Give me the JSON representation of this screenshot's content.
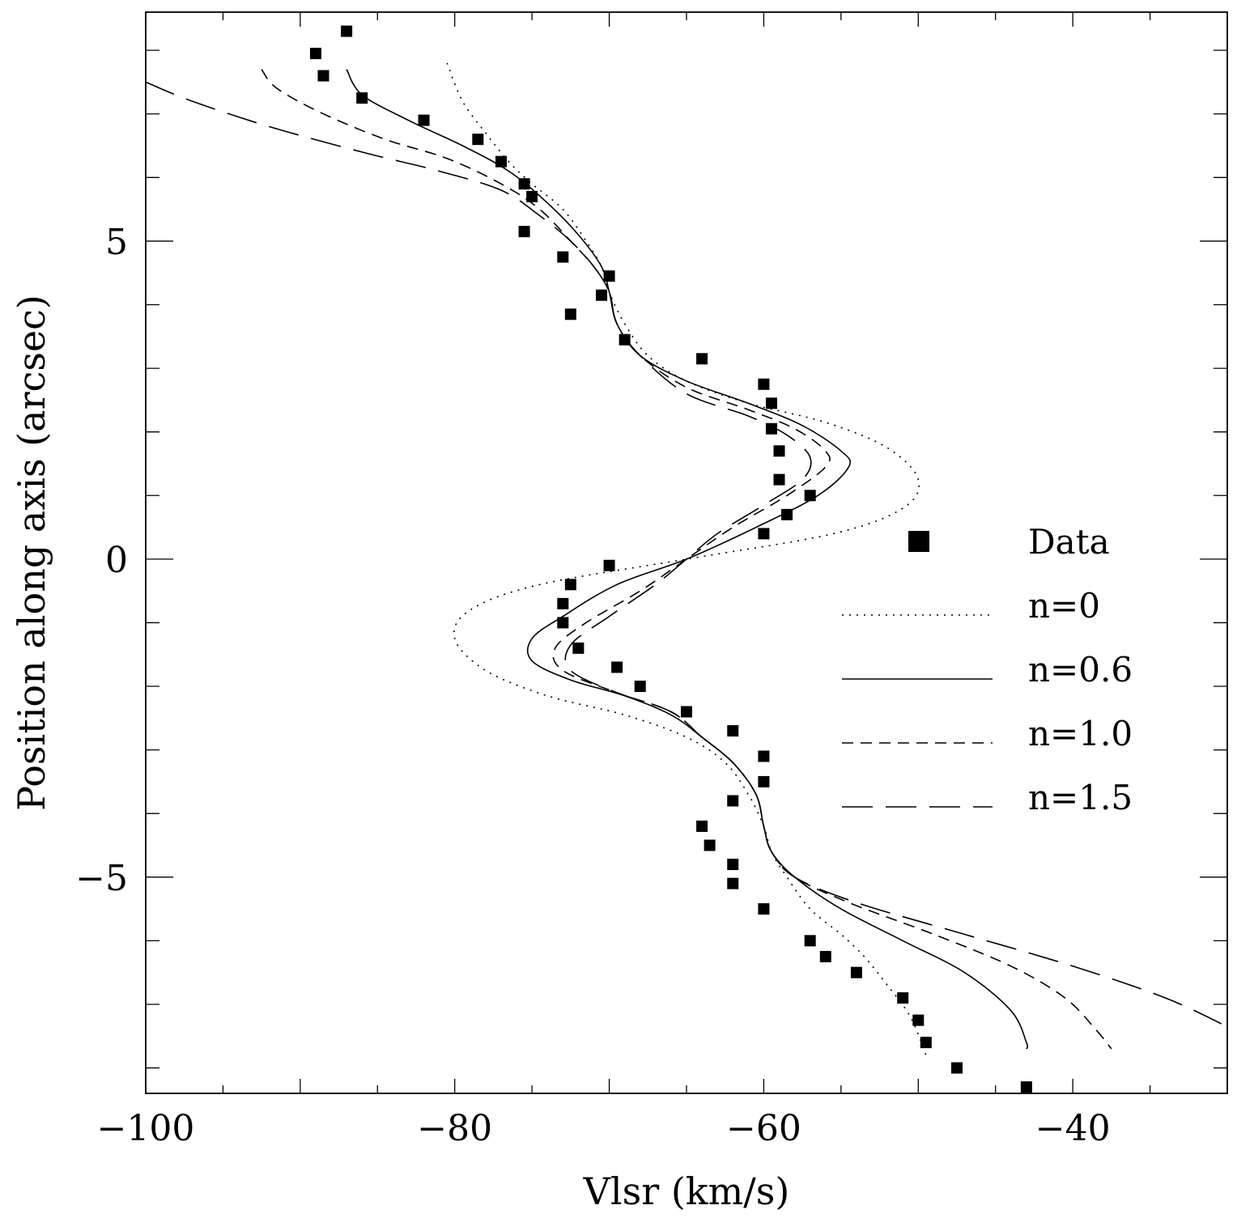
{
  "chart_data": {
    "type": "scatter",
    "title": "",
    "xlabel": "Vlsr (km/s)",
    "ylabel": "Position along axis (arcsec)",
    "xlim": [
      -100,
      -30
    ],
    "ylim": [
      -8.4,
      8.6
    ],
    "x_ticks": [
      -100,
      -80,
      -60,
      -40
    ],
    "x_tick_labels": [
      "−100",
      "−80",
      "−60",
      "−40"
    ],
    "y_ticks": [
      -5,
      0,
      5
    ],
    "y_tick_labels": [
      "−5",
      "0",
      "5"
    ],
    "legend_position": "right",
    "legend": [
      {
        "label": "Data",
        "style": "square"
      },
      {
        "label": "n=0",
        "style": "dotted"
      },
      {
        "label": "n=0.6",
        "style": "solid"
      },
      {
        "label": "n=1.0",
        "style": "short-dash"
      },
      {
        "label": "n=1.5",
        "style": "long-dash"
      }
    ],
    "data_points": [
      [
        -87.0,
        8.3
      ],
      [
        -89.0,
        7.95
      ],
      [
        -88.5,
        7.6
      ],
      [
        -86.0,
        7.25
      ],
      [
        -82.0,
        6.9
      ],
      [
        -78.5,
        6.6
      ],
      [
        -77.0,
        6.25
      ],
      [
        -75.5,
        5.9
      ],
      [
        -75.0,
        5.7
      ],
      [
        -75.5,
        5.15
      ],
      [
        -73.0,
        4.75
      ],
      [
        -70.0,
        4.45
      ],
      [
        -70.5,
        4.15
      ],
      [
        -72.5,
        3.85
      ],
      [
        -69.0,
        3.45
      ],
      [
        -64.0,
        3.15
      ],
      [
        -60.0,
        2.75
      ],
      [
        -59.5,
        2.45
      ],
      [
        -59.5,
        2.05
      ],
      [
        -59.0,
        1.7
      ],
      [
        -59.0,
        1.25
      ],
      [
        -57.0,
        1.0
      ],
      [
        -58.5,
        0.7
      ],
      [
        -60.0,
        0.4
      ],
      [
        -70.0,
        -0.1
      ],
      [
        -72.5,
        -0.4
      ],
      [
        -73.0,
        -0.7
      ],
      [
        -73.0,
        -1.0
      ],
      [
        -72.0,
        -1.4
      ],
      [
        -69.5,
        -1.7
      ],
      [
        -68.0,
        -2.0
      ],
      [
        -65.0,
        -2.4
      ],
      [
        -62.0,
        -2.7
      ],
      [
        -60.0,
        -3.1
      ],
      [
        -60.0,
        -3.5
      ],
      [
        -62.0,
        -3.8
      ],
      [
        -64.0,
        -4.2
      ],
      [
        -63.5,
        -4.5
      ],
      [
        -62.0,
        -4.8
      ],
      [
        -62.0,
        -5.1
      ],
      [
        -60.0,
        -5.5
      ],
      [
        -57.0,
        -6.0
      ],
      [
        -56.0,
        -6.25
      ],
      [
        -54.0,
        -6.5
      ],
      [
        -51.0,
        -6.9
      ],
      [
        -50.0,
        -7.25
      ],
      [
        -49.5,
        -7.6
      ],
      [
        -47.5,
        -8.0
      ],
      [
        -43.0,
        -8.3
      ]
    ],
    "series": [
      {
        "name": "n=0",
        "style": "dotted",
        "points": [
          [
            -80.5,
            7.8
          ],
          [
            -79.5,
            7.2
          ],
          [
            -78.0,
            6.7
          ],
          [
            -76.5,
            6.25
          ],
          [
            -75.0,
            5.9
          ],
          [
            -73.0,
            5.5
          ],
          [
            -71.5,
            5.0
          ],
          [
            -70.5,
            4.6
          ],
          [
            -70.0,
            4.2
          ],
          [
            -69.0,
            3.7
          ],
          [
            -67.5,
            3.2
          ],
          [
            -65.0,
            2.8
          ],
          [
            -61.0,
            2.45
          ],
          [
            -56.0,
            2.15
          ],
          [
            -52.0,
            1.75
          ],
          [
            -50.0,
            1.25
          ],
          [
            -51.0,
            0.8
          ],
          [
            -55.5,
            0.4
          ],
          [
            -65.0,
            0.0
          ],
          [
            -74.5,
            -0.4
          ],
          [
            -79.0,
            -0.8
          ],
          [
            -80.0,
            -1.25
          ],
          [
            -78.0,
            -1.75
          ],
          [
            -74.0,
            -2.15
          ],
          [
            -69.0,
            -2.45
          ],
          [
            -65.0,
            -2.8
          ],
          [
            -62.5,
            -3.2
          ],
          [
            -61.0,
            -3.7
          ],
          [
            -60.0,
            -4.2
          ],
          [
            -59.5,
            -4.6
          ],
          [
            -58.5,
            -5.0
          ],
          [
            -57.0,
            -5.5
          ],
          [
            -55.0,
            -5.9
          ],
          [
            -53.5,
            -6.25
          ],
          [
            -52.0,
            -6.7
          ],
          [
            -50.5,
            -7.2
          ],
          [
            -49.5,
            -7.8
          ]
        ]
      },
      {
        "name": "n=0.6",
        "style": "solid",
        "points": [
          [
            -87.0,
            7.7
          ],
          [
            -86.0,
            7.3
          ],
          [
            -83.0,
            6.9
          ],
          [
            -79.5,
            6.5
          ],
          [
            -76.5,
            6.1
          ],
          [
            -74.0,
            5.6
          ],
          [
            -72.0,
            5.1
          ],
          [
            -70.5,
            4.6
          ],
          [
            -70.0,
            4.2
          ],
          [
            -69.5,
            3.7
          ],
          [
            -68.0,
            3.2
          ],
          [
            -65.0,
            2.8
          ],
          [
            -61.0,
            2.45
          ],
          [
            -57.5,
            2.1
          ],
          [
            -55.0,
            1.7
          ],
          [
            -54.5,
            1.45
          ],
          [
            -56.5,
            1.0
          ],
          [
            -60.5,
            0.5
          ],
          [
            -65.0,
            0.0
          ],
          [
            -69.5,
            -0.4
          ],
          [
            -73.0,
            -0.9
          ],
          [
            -75.0,
            -1.25
          ],
          [
            -75.0,
            -1.6
          ],
          [
            -72.5,
            -1.9
          ],
          [
            -69.0,
            -2.15
          ],
          [
            -66.0,
            -2.45
          ],
          [
            -64.0,
            -2.8
          ],
          [
            -62.0,
            -3.2
          ],
          [
            -60.5,
            -3.7
          ],
          [
            -60.0,
            -4.2
          ],
          [
            -59.5,
            -4.6
          ],
          [
            -58.0,
            -5.0
          ],
          [
            -55.0,
            -5.5
          ],
          [
            -51.0,
            -6.0
          ],
          [
            -47.0,
            -6.5
          ],
          [
            -44.0,
            -7.1
          ],
          [
            -43.0,
            -7.6
          ],
          [
            -43.0,
            -7.7
          ]
        ]
      },
      {
        "name": "n=1.0",
        "style": "short-dash",
        "points": [
          [
            -92.5,
            7.7
          ],
          [
            -91.5,
            7.4
          ],
          [
            -88.5,
            7.0
          ],
          [
            -84.5,
            6.6
          ],
          [
            -80.5,
            6.3
          ],
          [
            -77.0,
            5.9
          ],
          [
            -74.5,
            5.5
          ],
          [
            -72.5,
            5.0
          ],
          [
            -71.0,
            4.6
          ],
          [
            -70.0,
            4.2
          ],
          [
            -69.5,
            3.7
          ],
          [
            -68.0,
            3.2
          ],
          [
            -65.0,
            2.7
          ],
          [
            -61.0,
            2.35
          ],
          [
            -58.0,
            2.05
          ],
          [
            -56.0,
            1.7
          ],
          [
            -56.0,
            1.45
          ],
          [
            -58.5,
            1.0
          ],
          [
            -62.0,
            0.5
          ],
          [
            -65.0,
            0.0
          ],
          [
            -68.0,
            -0.5
          ],
          [
            -71.5,
            -1.0
          ],
          [
            -73.5,
            -1.4
          ],
          [
            -73.0,
            -1.75
          ],
          [
            -69.5,
            -2.1
          ],
          [
            -66.0,
            -2.4
          ],
          [
            -64.0,
            -2.8
          ],
          [
            -62.0,
            -3.2
          ],
          [
            -60.5,
            -3.7
          ],
          [
            -60.0,
            -4.2
          ],
          [
            -59.5,
            -4.6
          ],
          [
            -58.0,
            -5.0
          ],
          [
            -54.5,
            -5.4
          ],
          [
            -49.0,
            -5.9
          ],
          [
            -44.0,
            -6.4
          ],
          [
            -40.5,
            -6.9
          ],
          [
            -38.5,
            -7.4
          ],
          [
            -37.5,
            -7.7
          ]
        ]
      },
      {
        "name": "n=1.5",
        "style": "long-dash",
        "points": [
          [
            -100.0,
            7.5
          ],
          [
            -97.0,
            7.2
          ],
          [
            -92.0,
            6.8
          ],
          [
            -86.0,
            6.4
          ],
          [
            -81.0,
            6.1
          ],
          [
            -77.0,
            5.8
          ],
          [
            -74.5,
            5.4
          ],
          [
            -72.5,
            5.0
          ],
          [
            -71.0,
            4.6
          ],
          [
            -70.0,
            4.2
          ],
          [
            -69.5,
            3.7
          ],
          [
            -68.0,
            3.2
          ],
          [
            -65.0,
            2.6
          ],
          [
            -61.0,
            2.25
          ],
          [
            -58.5,
            1.95
          ],
          [
            -57.0,
            1.6
          ],
          [
            -57.5,
            1.25
          ],
          [
            -60.0,
            0.85
          ],
          [
            -63.0,
            0.4
          ],
          [
            -65.0,
            0.0
          ],
          [
            -67.0,
            -0.4
          ],
          [
            -70.0,
            -0.9
          ],
          [
            -72.5,
            -1.35
          ],
          [
            -72.5,
            -1.75
          ],
          [
            -69.5,
            -2.1
          ],
          [
            -66.0,
            -2.4
          ],
          [
            -64.0,
            -2.8
          ],
          [
            -62.0,
            -3.2
          ],
          [
            -60.5,
            -3.7
          ],
          [
            -60.0,
            -4.2
          ],
          [
            -59.5,
            -4.6
          ],
          [
            -58.0,
            -5.0
          ],
          [
            -54.0,
            -5.4
          ],
          [
            -47.0,
            -5.9
          ],
          [
            -40.0,
            -6.4
          ],
          [
            -34.0,
            -6.9
          ],
          [
            -30.0,
            -7.35
          ]
        ]
      }
    ]
  }
}
